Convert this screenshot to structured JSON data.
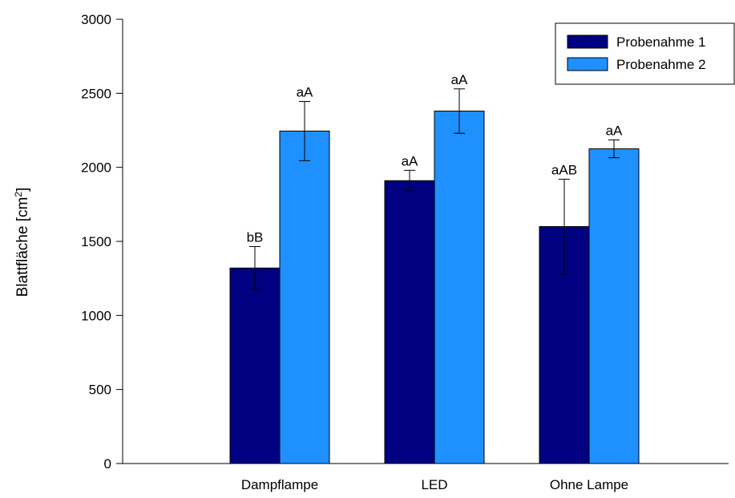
{
  "chart_data": {
    "type": "bar",
    "title": "",
    "xlabel": "",
    "ylabel": "Blattfläche [cm",
    "ylabel_sup": "2",
    "ylabel_end": "]",
    "ylim": [
      0,
      3000
    ],
    "yticks": [
      0,
      500,
      1000,
      1500,
      2000,
      2500,
      3000
    ],
    "grid": false,
    "legend_position": "top-right",
    "categories": [
      "Dampflampe",
      "LED",
      "Ohne Lampe"
    ],
    "series": [
      {
        "name": "Probenahme 1",
        "color": "#000080",
        "values": [
          1320,
          1910,
          1600
        ],
        "errors": [
          145,
          70,
          320
        ],
        "labels": [
          "bB",
          "aA",
          "aAB"
        ]
      },
      {
        "name": "Probenahme 2",
        "color": "#1f90ff",
        "values": [
          2245,
          2380,
          2125
        ],
        "errors": [
          200,
          150,
          60
        ],
        "labels": [
          "aA",
          "aA",
          "aA"
        ]
      }
    ]
  }
}
